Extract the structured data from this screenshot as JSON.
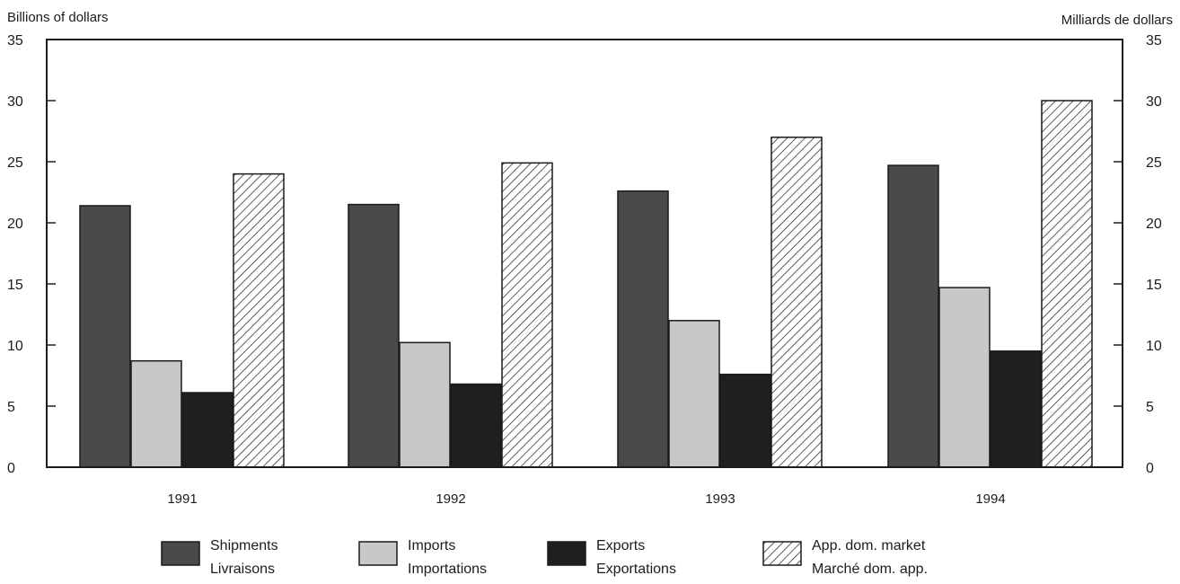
{
  "chart_data": {
    "type": "bar",
    "ylabel_left": "Billions of dollars",
    "ylabel_right": "Milliards de dollars",
    "ylim": [
      0,
      35
    ],
    "yticks": [
      "0",
      "5",
      "10",
      "15",
      "20",
      "25",
      "30",
      "35"
    ],
    "grid": false,
    "legend_position": "bottom",
    "categories": [
      "1991",
      "1992",
      "1993",
      "1994"
    ],
    "series": [
      {
        "name": "Shipments",
        "name_fr": "Livraisons",
        "values": [
          21.4,
          21.5,
          22.6,
          24.7
        ],
        "color": "#4a4a4a",
        "pattern": "solid"
      },
      {
        "name": "Imports",
        "name_fr": "Importations",
        "values": [
          8.7,
          10.2,
          12.0,
          14.7
        ],
        "color": "#c8c8c8",
        "pattern": "solid"
      },
      {
        "name": "Exports",
        "name_fr": "Exportations",
        "values": [
          6.1,
          6.8,
          7.6,
          9.5
        ],
        "color": "#1f1f1f",
        "pattern": "solid"
      },
      {
        "name": "App. dom. market",
        "name_fr": "Marché dom. app.",
        "values": [
          24.0,
          24.9,
          27.0,
          30.0
        ],
        "color": "#ffffff",
        "pattern": "diagonal-hatch"
      }
    ]
  }
}
